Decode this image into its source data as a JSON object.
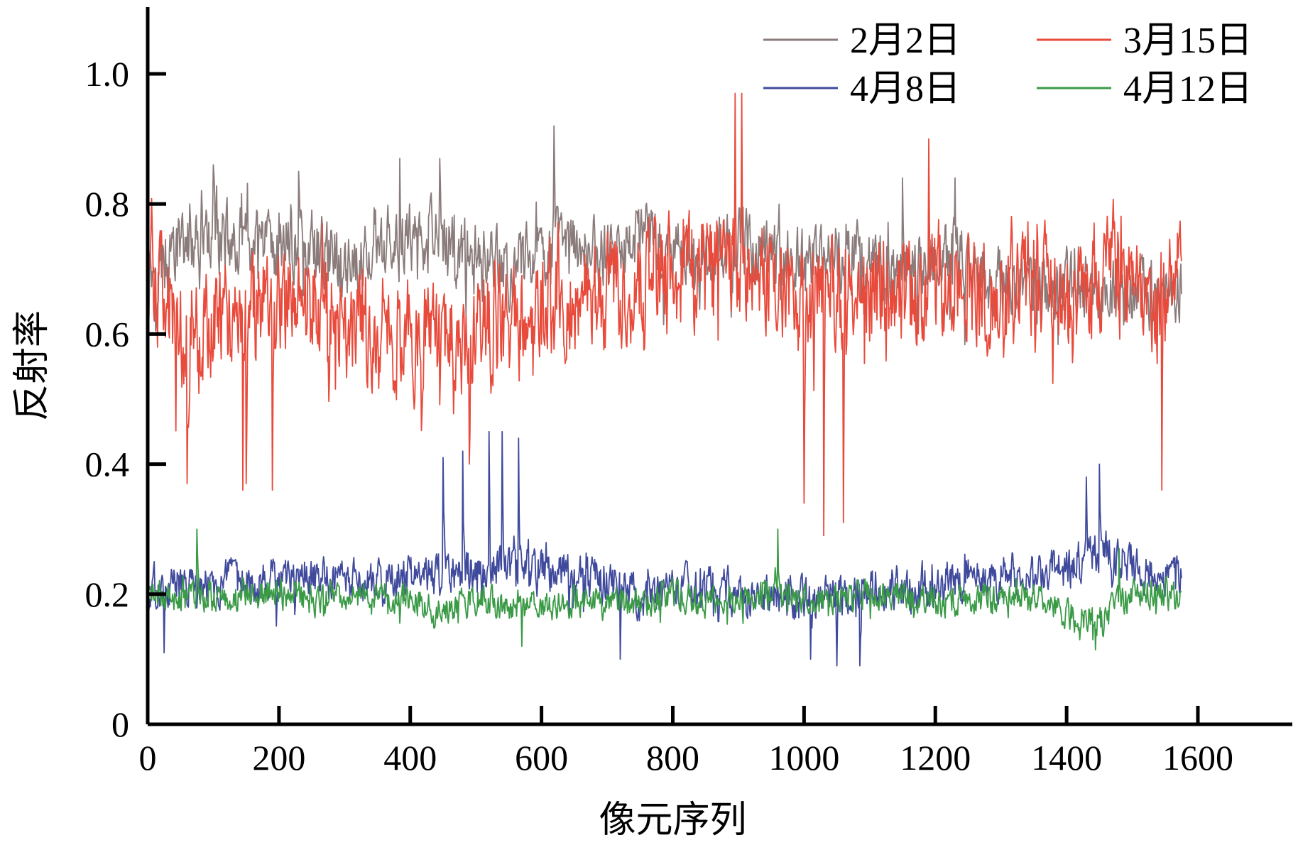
{
  "chart_data": {
    "type": "line",
    "title": "",
    "xlabel": "像元序列",
    "ylabel": "反射率",
    "xlim": [
      0,
      1750
    ],
    "ylim": [
      0,
      1.1
    ],
    "x_ticks": [
      0,
      200,
      400,
      600,
      800,
      1000,
      1200,
      1400,
      1600
    ],
    "x_tick_labels": [
      "0",
      "200",
      "400",
      "600",
      "800",
      "1000",
      "1200",
      "1400",
      "1600"
    ],
    "y_ticks": [
      0,
      0.2,
      0.4,
      0.6,
      0.8,
      1.0
    ],
    "y_tick_labels": [
      "0",
      "0.2",
      "0.4",
      "0.6",
      "0.8",
      "1.0"
    ],
    "grid": false,
    "legend_position": "top-right",
    "x_range": [
      0,
      1575
    ],
    "series": [
      {
        "name": "2月2日",
        "color": "#8b7b7b",
        "keypoints": [
          [
            0,
            0.7
          ],
          [
            50,
            0.73
          ],
          [
            100,
            0.75
          ],
          [
            150,
            0.74
          ],
          [
            200,
            0.72
          ],
          [
            250,
            0.74
          ],
          [
            300,
            0.71
          ],
          [
            350,
            0.73
          ],
          [
            400,
            0.75
          ],
          [
            450,
            0.74
          ],
          [
            500,
            0.72
          ],
          [
            550,
            0.7
          ],
          [
            600,
            0.73
          ],
          [
            650,
            0.74
          ],
          [
            700,
            0.72
          ],
          [
            750,
            0.74
          ],
          [
            800,
            0.73
          ],
          [
            850,
            0.72
          ],
          [
            900,
            0.74
          ],
          [
            950,
            0.73
          ],
          [
            1000,
            0.7
          ],
          [
            1050,
            0.72
          ],
          [
            1100,
            0.71
          ],
          [
            1150,
            0.7
          ],
          [
            1200,
            0.72
          ],
          [
            1250,
            0.7
          ],
          [
            1300,
            0.68
          ],
          [
            1350,
            0.67
          ],
          [
            1400,
            0.68
          ],
          [
            1450,
            0.66
          ],
          [
            1500,
            0.67
          ],
          [
            1550,
            0.66
          ],
          [
            1575,
            0.68
          ]
        ],
        "spread": 0.08,
        "extremes": [
          [
            619,
            0.92
          ],
          [
            384,
            0.87
          ],
          [
            445,
            0.87
          ],
          [
            100,
            0.86
          ],
          [
            230,
            0.85
          ],
          [
            1230,
            0.84
          ],
          [
            1150,
            0.84
          ]
        ]
      },
      {
        "name": "3月15日",
        "color": "#e84a3b",
        "keypoints": [
          [
            0,
            0.7
          ],
          [
            50,
            0.6
          ],
          [
            100,
            0.62
          ],
          [
            150,
            0.64
          ],
          [
            200,
            0.65
          ],
          [
            250,
            0.66
          ],
          [
            300,
            0.62
          ],
          [
            350,
            0.6
          ],
          [
            400,
            0.6
          ],
          [
            450,
            0.58
          ],
          [
            500,
            0.6
          ],
          [
            550,
            0.62
          ],
          [
            600,
            0.63
          ],
          [
            650,
            0.66
          ],
          [
            700,
            0.67
          ],
          [
            750,
            0.68
          ],
          [
            800,
            0.69
          ],
          [
            850,
            0.7
          ],
          [
            900,
            0.72
          ],
          [
            950,
            0.68
          ],
          [
            1000,
            0.64
          ],
          [
            1050,
            0.66
          ],
          [
            1100,
            0.68
          ],
          [
            1150,
            0.66
          ],
          [
            1200,
            0.68
          ],
          [
            1250,
            0.68
          ],
          [
            1300,
            0.66
          ],
          [
            1350,
            0.67
          ],
          [
            1400,
            0.66
          ],
          [
            1450,
            0.7
          ],
          [
            1500,
            0.66
          ],
          [
            1550,
            0.64
          ],
          [
            1575,
            0.72
          ]
        ],
        "spread": 0.13,
        "extremes": [
          [
            895,
            0.97
          ],
          [
            905,
            0.97
          ],
          [
            1190,
            0.9
          ],
          [
            1030,
            0.29
          ],
          [
            1060,
            0.31
          ],
          [
            1000,
            0.34
          ],
          [
            1545,
            0.36
          ],
          [
            60,
            0.37
          ],
          [
            190,
            0.36
          ],
          [
            145,
            0.36
          ],
          [
            490,
            0.4
          ],
          [
            150,
            0.37
          ]
        ]
      },
      {
        "name": "4月8日",
        "color": "#3f4a9c",
        "keypoints": [
          [
            0,
            0.2
          ],
          [
            50,
            0.21
          ],
          [
            100,
            0.21
          ],
          [
            150,
            0.22
          ],
          [
            200,
            0.22
          ],
          [
            250,
            0.22
          ],
          [
            300,
            0.22
          ],
          [
            350,
            0.22
          ],
          [
            400,
            0.23
          ],
          [
            450,
            0.23
          ],
          [
            500,
            0.24
          ],
          [
            550,
            0.24
          ],
          [
            600,
            0.24
          ],
          [
            650,
            0.23
          ],
          [
            700,
            0.22
          ],
          [
            750,
            0.2
          ],
          [
            800,
            0.21
          ],
          [
            850,
            0.21
          ],
          [
            900,
            0.2
          ],
          [
            950,
            0.2
          ],
          [
            1000,
            0.19
          ],
          [
            1050,
            0.2
          ],
          [
            1100,
            0.21
          ],
          [
            1150,
            0.21
          ],
          [
            1200,
            0.22
          ],
          [
            1250,
            0.23
          ],
          [
            1300,
            0.23
          ],
          [
            1350,
            0.23
          ],
          [
            1400,
            0.24
          ],
          [
            1450,
            0.27
          ],
          [
            1500,
            0.25
          ],
          [
            1550,
            0.23
          ],
          [
            1575,
            0.23
          ]
        ],
        "spread": 0.05,
        "extremes": [
          [
            540,
            0.45
          ],
          [
            520,
            0.45
          ],
          [
            565,
            0.44
          ],
          [
            450,
            0.41
          ],
          [
            480,
            0.42
          ],
          [
            1450,
            0.4
          ],
          [
            1430,
            0.38
          ],
          [
            1050,
            0.09
          ],
          [
            1085,
            0.09
          ],
          [
            720,
            0.1
          ],
          [
            25,
            0.11
          ],
          [
            1010,
            0.1
          ]
        ]
      },
      {
        "name": "4月12日",
        "color": "#3a9a46",
        "keypoints": [
          [
            0,
            0.2
          ],
          [
            50,
            0.2
          ],
          [
            100,
            0.19
          ],
          [
            150,
            0.2
          ],
          [
            200,
            0.2
          ],
          [
            250,
            0.19
          ],
          [
            300,
            0.2
          ],
          [
            350,
            0.2
          ],
          [
            400,
            0.19
          ],
          [
            450,
            0.18
          ],
          [
            500,
            0.19
          ],
          [
            550,
            0.18
          ],
          [
            600,
            0.18
          ],
          [
            650,
            0.19
          ],
          [
            700,
            0.18
          ],
          [
            750,
            0.19
          ],
          [
            800,
            0.2
          ],
          [
            850,
            0.19
          ],
          [
            900,
            0.19
          ],
          [
            950,
            0.2
          ],
          [
            1000,
            0.19
          ],
          [
            1050,
            0.19
          ],
          [
            1100,
            0.2
          ],
          [
            1150,
            0.2
          ],
          [
            1200,
            0.19
          ],
          [
            1250,
            0.19
          ],
          [
            1300,
            0.19
          ],
          [
            1350,
            0.2
          ],
          [
            1400,
            0.17
          ],
          [
            1450,
            0.16
          ],
          [
            1500,
            0.2
          ],
          [
            1550,
            0.2
          ],
          [
            1575,
            0.19
          ]
        ],
        "spread": 0.035,
        "extremes": [
          [
            960,
            0.3
          ],
          [
            75,
            0.3
          ],
          [
            1480,
            0.27
          ],
          [
            1420,
            0.13
          ],
          [
            1440,
            0.13
          ],
          [
            570,
            0.12
          ]
        ]
      }
    ]
  }
}
